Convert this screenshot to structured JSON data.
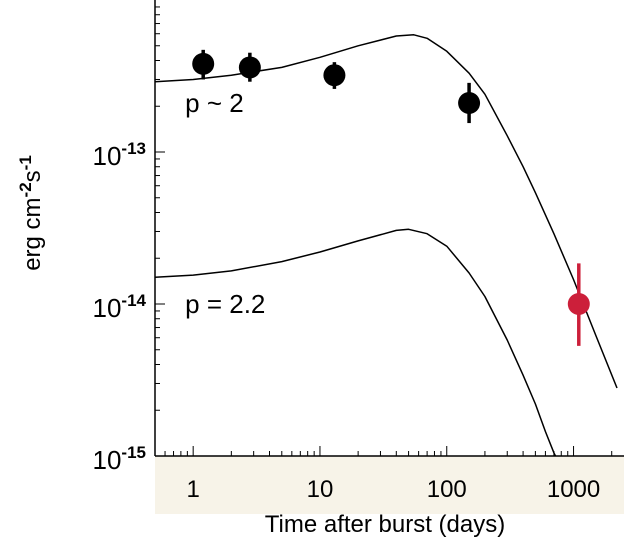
{
  "chart_data": {
    "type": "scatter",
    "xscale": "log",
    "yscale": "log",
    "xlim": [
      0.5,
      2500
    ],
    "ylim": [
      1e-15,
      1e-12
    ],
    "xlabel": "Time after burst (days)",
    "ylabel": {
      "base": "erg cm",
      "exp1": "-2",
      "mid": "s",
      "exp2": "-1"
    },
    "x_ticks": [
      {
        "value": 1,
        "label": "1"
      },
      {
        "value": 10,
        "label": "10"
      },
      {
        "value": 100,
        "label": "100"
      },
      {
        "value": 1000,
        "label": "1000"
      }
    ],
    "y_ticks": [
      {
        "value": 1e-13,
        "base": "10",
        "exp": "-13"
      },
      {
        "value": 1e-14,
        "base": "10",
        "exp": "-14"
      },
      {
        "value": 1e-15,
        "base": "10",
        "exp": "-15"
      }
    ],
    "grid": false,
    "curves": [
      {
        "label": "p ~ 2",
        "label_at": {
          "x": 1.0,
          "y": 2.1e-13
        },
        "color": "#000000",
        "points": [
          [
            0.5,
            2.9e-13
          ],
          [
            1,
            3e-13
          ],
          [
            2,
            3.2e-13
          ],
          [
            5,
            3.6e-13
          ],
          [
            10,
            4.2e-13
          ],
          [
            20,
            5e-13
          ],
          [
            40,
            5.8e-13
          ],
          [
            55,
            5.9e-13
          ],
          [
            70,
            5.6e-13
          ],
          [
            100,
            4.6e-13
          ],
          [
            150,
            3.3e-13
          ],
          [
            200,
            2.4e-13
          ],
          [
            300,
            1.28e-13
          ],
          [
            400,
            8e-14
          ],
          [
            500,
            5.4e-14
          ],
          [
            700,
            2.9e-14
          ],
          [
            1000,
            1.45e-14
          ],
          [
            1500,
            6.2e-15
          ],
          [
            2200,
            2.8e-15
          ]
        ]
      },
      {
        "label": "p = 2.2",
        "label_at": {
          "x": 1.0,
          "y": 1e-14
        },
        "color": "#000000",
        "points": [
          [
            0.5,
            1.5e-14
          ],
          [
            1,
            1.55e-14
          ],
          [
            2,
            1.65e-14
          ],
          [
            5,
            1.9e-14
          ],
          [
            10,
            2.2e-14
          ],
          [
            20,
            2.6e-14
          ],
          [
            40,
            3.05e-14
          ],
          [
            50,
            3.1e-14
          ],
          [
            70,
            2.9e-14
          ],
          [
            100,
            2.4e-14
          ],
          [
            150,
            1.6e-14
          ],
          [
            200,
            1.12e-14
          ],
          [
            300,
            5.8e-15
          ],
          [
            400,
            3.4e-15
          ],
          [
            500,
            2.2e-15
          ],
          [
            600,
            1.45e-15
          ],
          [
            700,
            1.05e-15
          ],
          [
            720,
            1e-15
          ]
        ]
      }
    ],
    "points": [
      {
        "x": 1.2,
        "y": 3.8e-13,
        "err_low": 3e-13,
        "err_high": 4.7e-13,
        "color": "#000000"
      },
      {
        "x": 2.8,
        "y": 3.6e-13,
        "err_low": 2.9e-13,
        "err_high": 4.5e-13,
        "color": "#000000"
      },
      {
        "x": 13,
        "y": 3.2e-13,
        "err_low": 2.6e-13,
        "err_high": 3.9e-13,
        "color": "#000000"
      },
      {
        "x": 150,
        "y": 2.1e-13,
        "err_low": 1.55e-13,
        "err_high": 2.85e-13,
        "color": "#000000"
      },
      {
        "x": 1100,
        "y": 1e-14,
        "err_low": 5.3e-15,
        "err_high": 1.85e-14,
        "color": "#cc1f3a"
      }
    ],
    "colors": {
      "axis": "#000000",
      "xaxis_band": "#f7f3e8",
      "highlight": "#cc1f3a"
    }
  }
}
